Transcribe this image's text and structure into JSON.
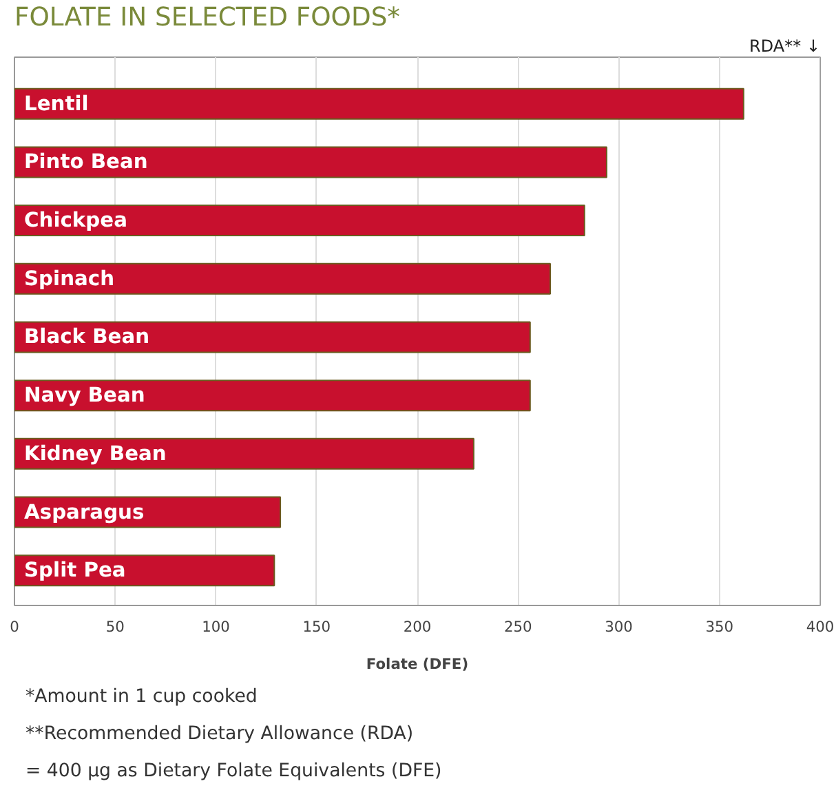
{
  "chart_data": {
    "type": "bar",
    "orientation": "horizontal",
    "title": "FOLATE IN SELECTED FOODS*",
    "xlabel": "Folate (DFE)",
    "categories": [
      "Lentil",
      "Pinto Bean",
      "Chickpea",
      "Spinach",
      "Black Bean",
      "Navy Bean",
      "Kidney Bean",
      "Asparagus",
      "Split Pea"
    ],
    "values": [
      362,
      294,
      283,
      266,
      256,
      256,
      228,
      132,
      129
    ],
    "color": "#c8102e",
    "xlim": [
      0,
      400
    ],
    "xticks": [
      0,
      50,
      100,
      150,
      200,
      250,
      300,
      350,
      400
    ],
    "grid": "x",
    "ref_lines": [
      {
        "axis": "x",
        "value": 400,
        "label": "RDA** ↓",
        "color": "#bbbbbb"
      }
    ],
    "annotations": [
      "*Amount in 1 cup cooked",
      "**Recommended Dietary Allowance (RDA)",
      "= 400 µg as Dietary Folate Equivalents (DFE)"
    ]
  }
}
